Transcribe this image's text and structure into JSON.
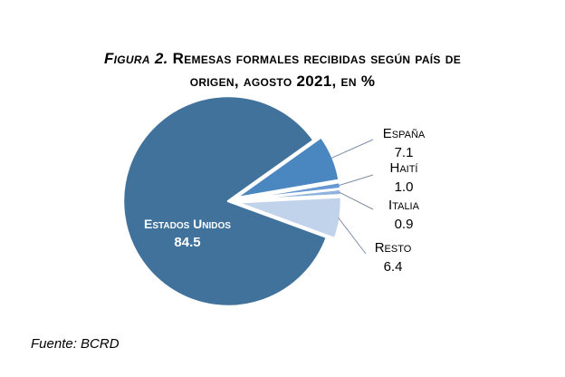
{
  "title": {
    "label": "Figura 2.",
    "line1_rest": " Remesas formales recibidas según país de",
    "line2": "origen, agosto 2021, en %"
  },
  "source": "Fuente: BCRD",
  "chart_data": {
    "type": "pie",
    "title": "Figura 2. Remesas formales recibidas según país de origen, agosto 2021, en %",
    "categories": [
      "Estados Unidos",
      "España",
      "Haití",
      "Italia",
      "Resto"
    ],
    "values": [
      84.5,
      7.1,
      1.0,
      0.9,
      6.4
    ],
    "value_labels": [
      "84.5",
      "7.1",
      "1.0",
      "0.9",
      "6.4"
    ],
    "colors": [
      "#41729c",
      "#4a86c0",
      "#6699d4",
      "#8fb3de",
      "#c0d3ea"
    ],
    "exploded": [
      "España",
      "Haití",
      "Italia",
      "Resto"
    ],
    "legend": "none"
  }
}
